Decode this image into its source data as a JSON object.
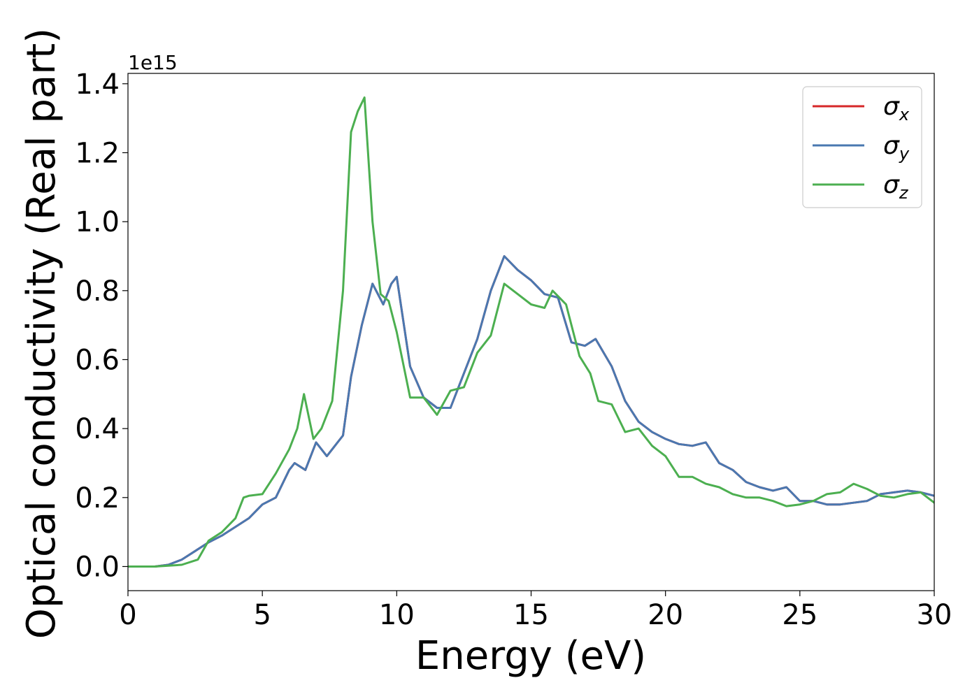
{
  "chart_data": {
    "type": "line",
    "xlabel": "Energy (eV)",
    "ylabel": "Optical conductivity (Real part)",
    "y_offset_label": "1e15",
    "xlim": [
      0,
      30
    ],
    "ylim": [
      -0.07,
      1.43
    ],
    "y_scale_factor": 1000000000000000.0,
    "xticks": [
      0,
      5,
      10,
      15,
      20,
      25,
      30
    ],
    "xtick_labels": [
      "0",
      "5",
      "10",
      "15",
      "20",
      "25",
      "30"
    ],
    "yticks": [
      0.0,
      0.2,
      0.4,
      0.6,
      0.8,
      1.0,
      1.2,
      1.4
    ],
    "ytick_labels": [
      "0.0",
      "0.2",
      "0.4",
      "0.6",
      "0.8",
      "1.0",
      "1.2",
      "1.4"
    ],
    "grid": false,
    "legend_position": "top-right",
    "series": [
      {
        "name": "σ",
        "subscript": "x",
        "color": "#d62728",
        "x": [
          0,
          1,
          1.5,
          2,
          2.5,
          3,
          3.5,
          4,
          4.5,
          5,
          5.5,
          6,
          6.2,
          6.6,
          7,
          7.4,
          7.7,
          8,
          8.3,
          8.7,
          9.1,
          9.5,
          9.8,
          10,
          10.5,
          11,
          11.5,
          12,
          12.5,
          13,
          13.5,
          14,
          14.5,
          15,
          15.5,
          16,
          16.5,
          17,
          17.4,
          18,
          18.5,
          19,
          19.5,
          20,
          20.5,
          21,
          21.5,
          22,
          22.5,
          23,
          23.5,
          24,
          24.5,
          25,
          25.5,
          26,
          26.5,
          27,
          27.5,
          28,
          28.5,
          29,
          29.5,
          30
        ],
        "y": [
          0.0,
          0.0,
          0.005,
          0.02,
          0.045,
          0.07,
          0.09,
          0.115,
          0.14,
          0.18,
          0.2,
          0.28,
          0.3,
          0.28,
          0.36,
          0.32,
          0.35,
          0.38,
          0.55,
          0.7,
          0.82,
          0.76,
          0.82,
          0.84,
          0.58,
          0.49,
          0.46,
          0.46,
          0.56,
          0.66,
          0.8,
          0.9,
          0.86,
          0.83,
          0.79,
          0.78,
          0.65,
          0.64,
          0.66,
          0.58,
          0.48,
          0.42,
          0.39,
          0.37,
          0.355,
          0.35,
          0.36,
          0.3,
          0.28,
          0.245,
          0.23,
          0.22,
          0.23,
          0.19,
          0.19,
          0.18,
          0.18,
          0.185,
          0.19,
          0.21,
          0.215,
          0.22,
          0.215,
          0.205
        ]
      },
      {
        "name": "σ",
        "subscript": "y",
        "color": "#4a78b0",
        "x": [
          0,
          1,
          1.5,
          2,
          2.5,
          3,
          3.5,
          4,
          4.5,
          5,
          5.5,
          6,
          6.2,
          6.6,
          7,
          7.4,
          7.7,
          8,
          8.3,
          8.7,
          9.1,
          9.5,
          9.8,
          10,
          10.5,
          11,
          11.5,
          12,
          12.5,
          13,
          13.5,
          14,
          14.5,
          15,
          15.5,
          16,
          16.5,
          17,
          17.4,
          18,
          18.5,
          19,
          19.5,
          20,
          20.5,
          21,
          21.5,
          22,
          22.5,
          23,
          23.5,
          24,
          24.5,
          25,
          25.5,
          26,
          26.5,
          27,
          27.5,
          28,
          28.5,
          29,
          29.5,
          30
        ],
        "y": [
          0.0,
          0.0,
          0.005,
          0.02,
          0.045,
          0.07,
          0.09,
          0.115,
          0.14,
          0.18,
          0.2,
          0.28,
          0.3,
          0.28,
          0.36,
          0.32,
          0.35,
          0.38,
          0.55,
          0.7,
          0.82,
          0.76,
          0.82,
          0.84,
          0.58,
          0.49,
          0.46,
          0.46,
          0.56,
          0.66,
          0.8,
          0.9,
          0.86,
          0.83,
          0.79,
          0.78,
          0.65,
          0.64,
          0.66,
          0.58,
          0.48,
          0.42,
          0.39,
          0.37,
          0.355,
          0.35,
          0.36,
          0.3,
          0.28,
          0.245,
          0.23,
          0.22,
          0.23,
          0.19,
          0.19,
          0.18,
          0.18,
          0.185,
          0.19,
          0.21,
          0.215,
          0.22,
          0.215,
          0.205
        ]
      },
      {
        "name": "σ",
        "subscript": "z",
        "color": "#4caf50",
        "x": [
          0,
          1,
          2,
          2.6,
          3,
          3.5,
          4,
          4.3,
          4.5,
          5,
          5.5,
          6,
          6.3,
          6.55,
          6.9,
          7.2,
          7.6,
          8,
          8.3,
          8.55,
          8.8,
          9.1,
          9.4,
          9.7,
          10,
          10.5,
          11,
          11.5,
          12,
          12.5,
          13,
          13.5,
          14,
          14.5,
          15,
          15.5,
          15.8,
          16.3,
          16.8,
          17.2,
          17.5,
          18,
          18.5,
          19,
          19.5,
          20,
          20.5,
          21,
          21.5,
          22,
          22.5,
          23,
          23.5,
          24,
          24.5,
          25,
          25.5,
          26,
          26.5,
          27,
          27.5,
          28,
          28.5,
          29,
          29.5,
          30
        ],
        "y": [
          0.0,
          0.0,
          0.005,
          0.02,
          0.075,
          0.1,
          0.14,
          0.2,
          0.205,
          0.21,
          0.27,
          0.34,
          0.4,
          0.5,
          0.37,
          0.4,
          0.48,
          0.8,
          1.26,
          1.32,
          1.36,
          1.0,
          0.79,
          0.77,
          0.68,
          0.49,
          0.49,
          0.44,
          0.51,
          0.52,
          0.62,
          0.67,
          0.82,
          0.79,
          0.76,
          0.75,
          0.8,
          0.76,
          0.61,
          0.56,
          0.48,
          0.47,
          0.39,
          0.4,
          0.35,
          0.32,
          0.26,
          0.26,
          0.24,
          0.23,
          0.21,
          0.2,
          0.2,
          0.19,
          0.175,
          0.18,
          0.19,
          0.21,
          0.215,
          0.24,
          0.225,
          0.205,
          0.2,
          0.21,
          0.215,
          0.185
        ]
      }
    ]
  }
}
